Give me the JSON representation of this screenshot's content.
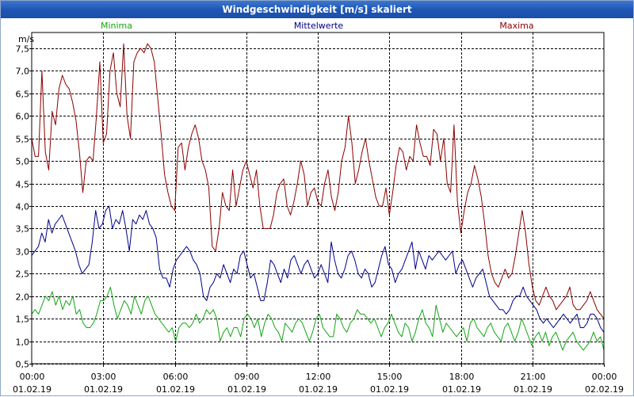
{
  "window": {
    "title": "Windgeschwindigkeit [m/s] skaliert"
  },
  "colors": {
    "minima": "#11a611",
    "mittel": "#00008b",
    "maxima": "#8b0000",
    "title_bar": "#1f56b5"
  },
  "chart_data": {
    "type": "line",
    "title": "Windgeschwindigkeit [m/s] skaliert",
    "ylabel": "m/s",
    "ylim": [
      0.5,
      7.85
    ],
    "yticks": [
      "0,5",
      "1,0",
      "1,5",
      "2,0",
      "2,5",
      "3,0",
      "3,5",
      "4,0",
      "4,5",
      "5,0",
      "5,5",
      "6,0",
      "6,5",
      "7,0",
      "7,5"
    ],
    "xlim": [
      0,
      24
    ],
    "xticks": [
      {
        "time": "00:00",
        "date": "01.02.19"
      },
      {
        "time": "03:00",
        "date": "01.02.19"
      },
      {
        "time": "06:00",
        "date": "01.02.19"
      },
      {
        "time": "09:00",
        "date": "01.02.19"
      },
      {
        "time": "12:00",
        "date": "01.02.19"
      },
      {
        "time": "15:00",
        "date": "01.02.19"
      },
      {
        "time": "18:00",
        "date": "01.02.19"
      },
      {
        "time": "21:00",
        "date": "01.02.19"
      },
      {
        "time": "00:00",
        "date": "02.02.19"
      }
    ],
    "grid": true,
    "series": [
      {
        "name": "Minima",
        "key": "minima",
        "values": [
          1.6,
          1.7,
          1.6,
          1.8,
          2.0,
          1.9,
          2.1,
          1.8,
          2.0,
          1.7,
          1.9,
          1.8,
          2.0,
          1.6,
          1.7,
          1.4,
          1.3,
          1.3,
          1.4,
          1.6,
          1.9,
          1.9,
          2.0,
          2.2,
          1.8,
          1.5,
          1.7,
          1.9,
          1.8,
          1.6,
          2.0,
          1.8,
          1.6,
          1.9,
          2.0,
          1.8,
          1.6,
          1.5,
          1.4,
          1.3,
          1.2,
          1.3,
          1.0,
          1.3,
          1.4,
          1.4,
          1.3,
          1.4,
          1.6,
          1.4,
          1.5,
          1.7,
          1.6,
          1.7,
          1.5,
          1.0,
          1.2,
          1.3,
          1.1,
          1.3,
          1.3,
          1.1,
          1.5,
          1.6,
          1.5,
          1.3,
          1.5,
          1.1,
          1.4,
          1.6,
          1.5,
          1.3,
          1.2,
          1.0,
          1.4,
          1.3,
          1.2,
          1.4,
          1.5,
          1.4,
          1.2,
          1.0,
          1.2,
          1.5,
          1.6,
          1.3,
          1.2,
          1.1,
          1.1,
          1.6,
          1.5,
          1.3,
          1.2,
          1.4,
          1.5,
          1.7,
          1.6,
          1.6,
          1.5,
          1.4,
          1.5,
          1.3,
          1.1,
          1.3,
          1.4,
          1.6,
          1.4,
          1.2,
          1.1,
          1.4,
          1.3,
          1.0,
          1.2,
          1.5,
          1.7,
          1.4,
          1.3,
          1.1,
          1.8,
          1.5,
          1.2,
          1.4,
          1.3,
          1.2,
          1.1,
          1.2,
          1.3,
          1.0,
          1.4,
          1.5,
          1.3,
          1.2,
          1.1,
          1.3,
          1.4,
          1.2,
          1.1,
          1.0,
          1.3,
          1.4,
          1.2,
          1.0,
          1.2,
          1.5,
          1.3,
          1.1,
          0.9,
          1.1,
          1.2,
          1.0,
          1.2,
          0.9,
          1.1,
          1.2,
          1.0,
          0.8,
          1.0,
          1.1,
          1.2,
          1.0,
          0.9,
          0.8,
          0.9,
          1.0,
          1.2,
          1.0,
          1.1,
          0.8
        ]
      },
      {
        "name": "Mittelwerte",
        "key": "mittel",
        "values": [
          2.9,
          3.0,
          3.1,
          3.4,
          3.2,
          3.7,
          3.4,
          3.6,
          3.7,
          3.8,
          3.6,
          3.4,
          3.2,
          3.0,
          2.7,
          2.5,
          2.6,
          2.7,
          3.2,
          3.9,
          3.5,
          3.6,
          3.9,
          4.0,
          3.5,
          3.7,
          3.6,
          3.9,
          3.5,
          3.0,
          3.7,
          3.6,
          3.8,
          3.7,
          3.9,
          3.6,
          3.5,
          3.3,
          2.6,
          2.4,
          2.4,
          2.2,
          2.6,
          2.8,
          2.9,
          3.0,
          3.1,
          3.0,
          2.8,
          2.7,
          2.5,
          2.0,
          1.9,
          2.2,
          2.3,
          2.5,
          2.4,
          2.7,
          2.5,
          2.3,
          2.6,
          2.5,
          2.9,
          3.0,
          2.7,
          2.4,
          2.5,
          2.2,
          1.9,
          1.9,
          2.3,
          2.8,
          2.7,
          2.5,
          2.3,
          2.6,
          2.4,
          2.8,
          2.9,
          2.7,
          2.5,
          2.7,
          2.8,
          2.6,
          2.4,
          2.5,
          2.7,
          2.5,
          2.3,
          3.2,
          2.8,
          2.5,
          2.4,
          2.6,
          2.9,
          3.0,
          2.8,
          2.5,
          2.4,
          2.6,
          2.5,
          2.2,
          2.3,
          2.6,
          2.9,
          3.1,
          2.7,
          2.6,
          2.3,
          2.5,
          2.6,
          2.8,
          3.0,
          3.2,
          2.6,
          3.0,
          2.8,
          2.6,
          2.9,
          2.8,
          2.9,
          3.0,
          2.9,
          2.8,
          2.9,
          3.0,
          2.5,
          2.7,
          2.8,
          2.6,
          2.4,
          2.2,
          2.4,
          2.5,
          2.6,
          2.3,
          2.0,
          1.9,
          1.8,
          1.7,
          1.7,
          1.6,
          1.7,
          1.9,
          2.0,
          2.0,
          2.2,
          2.0,
          1.9,
          1.8,
          1.7,
          1.5,
          1.4,
          1.5,
          1.4,
          1.3,
          1.4,
          1.5,
          1.6,
          1.5,
          1.4,
          1.5,
          1.6,
          1.3,
          1.3,
          1.4,
          1.6,
          1.6,
          1.5,
          1.3,
          1.2
        ]
      },
      {
        "name": "Maxima",
        "key": "maxima",
        "values": [
          5.5,
          5.1,
          5.1,
          7.0,
          5.2,
          4.8,
          6.1,
          5.8,
          6.6,
          6.9,
          6.7,
          6.6,
          6.3,
          5.9,
          5.2,
          4.3,
          5.0,
          5.1,
          5.0,
          6.0,
          7.2,
          5.4,
          5.6,
          7.0,
          7.4,
          6.5,
          6.2,
          7.6,
          6.0,
          5.5,
          7.2,
          7.4,
          7.5,
          7.4,
          7.6,
          7.5,
          7.2,
          6.4,
          5.6,
          4.7,
          4.3,
          4.0,
          3.9,
          5.3,
          5.4,
          4.8,
          5.3,
          5.6,
          5.8,
          5.5,
          5.0,
          4.8,
          4.4,
          3.1,
          3.0,
          3.5,
          4.3,
          4.0,
          3.9,
          4.8,
          4.0,
          4.4,
          4.8,
          5.0,
          4.7,
          4.4,
          4.8,
          4.0,
          3.5,
          3.5,
          3.5,
          3.8,
          4.3,
          4.5,
          4.6,
          4.0,
          3.8,
          4.1,
          4.5,
          5.0,
          4.7,
          4.0,
          4.3,
          4.4,
          4.1,
          4.0,
          4.5,
          4.8,
          4.2,
          3.9,
          4.3,
          5.0,
          5.3,
          6.0,
          5.4,
          4.5,
          4.8,
          5.2,
          5.5,
          5.0,
          4.6,
          4.2,
          4.0,
          4.0,
          4.4,
          3.8,
          4.3,
          4.9,
          5.3,
          5.2,
          4.8,
          5.1,
          5.0,
          5.8,
          5.4,
          5.1,
          5.1,
          4.9,
          5.7,
          5.6,
          5.0,
          5.5,
          4.5,
          4.3,
          5.8,
          4.1,
          3.4,
          3.9,
          4.3,
          4.5,
          4.9,
          4.6,
          4.2,
          3.6,
          2.9,
          2.5,
          2.3,
          2.2,
          2.4,
          2.6,
          2.4,
          2.5,
          2.9,
          3.4,
          3.9,
          3.4,
          2.7,
          2.2,
          1.9,
          1.8,
          2.0,
          2.2,
          2.0,
          1.9,
          1.7,
          1.8,
          1.9,
          2.0,
          2.2,
          1.8,
          1.7,
          1.7,
          1.8,
          1.9,
          2.1,
          1.9,
          1.7,
          1.6,
          1.5
        ]
      }
    ]
  }
}
